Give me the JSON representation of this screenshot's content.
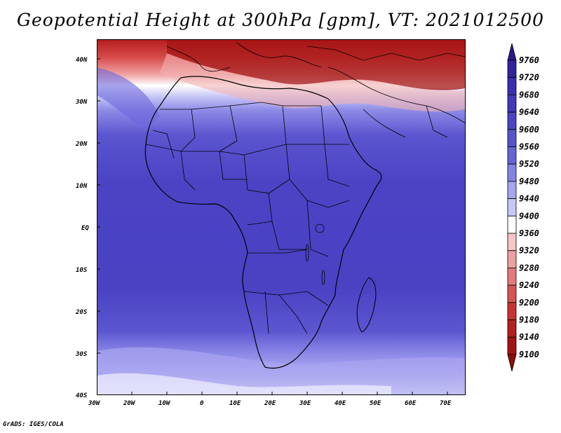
{
  "title": "Geopotential Height at 300hPa [gpm], VT: 2021012500",
  "footer": "GrADS: IGES/COLA",
  "axes": {
    "lat_labels": [
      "40N",
      "30N",
      "20N",
      "10N",
      "EQ",
      "10S",
      "20S",
      "30S",
      "40S"
    ],
    "lon_labels": [
      "30W",
      "20W",
      "10W",
      "0",
      "10E",
      "20E",
      "30E",
      "40E",
      "50E",
      "60E",
      "70E"
    ]
  },
  "colorbar": {
    "levels": [
      9760,
      9720,
      9680,
      9640,
      9600,
      9560,
      9520,
      9480,
      9440,
      9400,
      9360,
      9320,
      9280,
      9240,
      9200,
      9180,
      9140,
      9100
    ],
    "colors": [
      "#2a1a8c",
      "#33229e",
      "#3b2fb0",
      "#4437bc",
      "#4b45c3",
      "#5454cb",
      "#6464d6",
      "#8383e6",
      "#a5a5f2",
      "#c7c7f7",
      "#ffffff",
      "#f7c6c6",
      "#eea0a0",
      "#e47a7a",
      "#d95454",
      "#cb3333",
      "#b71f1f",
      "#a11414",
      "#8c0e0e"
    ]
  }
}
